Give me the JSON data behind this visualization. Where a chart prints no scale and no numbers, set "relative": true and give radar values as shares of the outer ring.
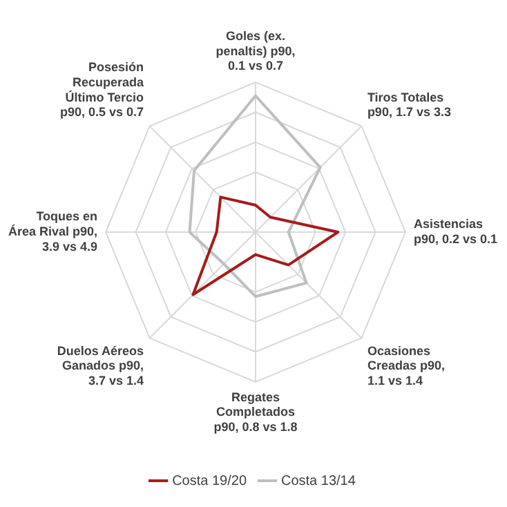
{
  "chart_data": {
    "type": "radar",
    "relative": true,
    "categories": [
      "Goles (ex.\npenaltis) p90,\n0.1 vs 0.7",
      "Tiros Totales\np90, 1.7 vs 3.3",
      "Asistencias\np90, 0.2 vs 0.1",
      "Ocasiones\nCreadas p90,\n1.1 vs 1.4",
      "Regates\nCompletados\np90, 0.8 vs 1.8",
      "Duelos Aéreos\nGanados p90,\n3.7 vs 1.4",
      "Toques en\nÁrea Rival p90,\n3.9 vs 4.9",
      "Posesión\nRecuperada\nÚltimo Tercio\np90, 0.5 vs 0.7"
    ],
    "series": [
      {
        "name": "Costa 19/20",
        "color": "#a51c1c",
        "values": [
          0.18,
          0.14,
          0.55,
          0.31,
          0.15,
          0.59,
          0.26,
          0.33
        ]
      },
      {
        "name": "Costa 13/14",
        "color": "#bfbfbf",
        "values": [
          0.91,
          0.61,
          0.22,
          0.48,
          0.43,
          0.3,
          0.44,
          0.58
        ]
      }
    ],
    "grid": true,
    "legend": "bottom",
    "marker": "none",
    "line_style": "solid"
  }
}
